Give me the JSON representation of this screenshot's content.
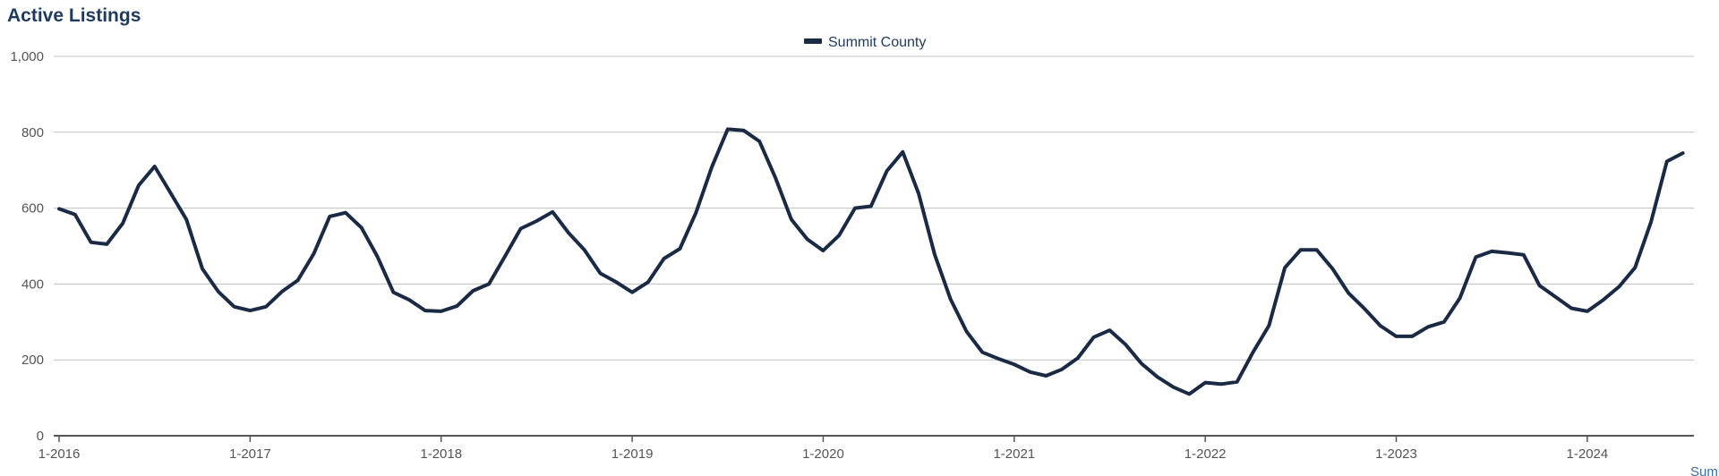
{
  "title": "Active Listings",
  "footer": "Summit County: Residential",
  "colors": {
    "series": "#1b2a44",
    "grid": "#bfbfbf",
    "title": "#1f3a5f",
    "footer": "#3b6ea5"
  },
  "chart_data": {
    "type": "line",
    "title": "Active Listings",
    "xlabel": "",
    "ylabel": "",
    "ylim": [
      0,
      1000
    ],
    "yticks": [
      0,
      200,
      400,
      600,
      800,
      1000
    ],
    "ytick_labels": [
      "0",
      "200",
      "400",
      "600",
      "800",
      "1,000"
    ],
    "xtick_labels": [
      "1-2016",
      "1-2017",
      "1-2018",
      "1-2019",
      "1-2020",
      "1-2021",
      "1-2022",
      "1-2023",
      "1-2024"
    ],
    "x_start": "2016-01",
    "x_frequency": "monthly",
    "grid": true,
    "legend": "top-center",
    "series": [
      {
        "name": "Summit County",
        "values": [
          598,
          583,
          510,
          505,
          560,
          660,
          710,
          640,
          570,
          440,
          380,
          340,
          330,
          340,
          380,
          410,
          480,
          578,
          588,
          548,
          472,
          378,
          358,
          330,
          328,
          342,
          382,
          400,
          472,
          546,
          566,
          590,
          535,
          490,
          428,
          405,
          378,
          405,
          467,
          493,
          587,
          708,
          808,
          805,
          776,
          680,
          570,
          518,
          488,
          528,
          600,
          605,
          698,
          748,
          638,
          478,
          360,
          275,
          220,
          203,
          188,
          168,
          158,
          175,
          205,
          260,
          278,
          240,
          190,
          155,
          128,
          110,
          140,
          136,
          142,
          220,
          290,
          443,
          490,
          490,
          440,
          376,
          335,
          290,
          262,
          262,
          287,
          300,
          363,
          471,
          486,
          482,
          477,
          396,
          366,
          336,
          328,
          358,
          393,
          443,
          563,
          723,
          745
        ]
      }
    ]
  }
}
